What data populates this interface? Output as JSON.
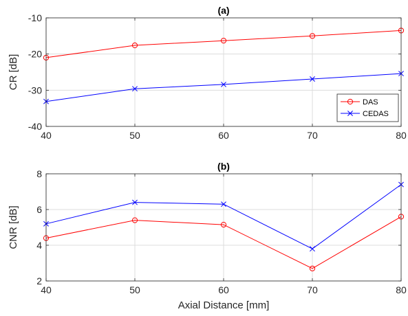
{
  "chart_data": [
    {
      "type": "line",
      "title": "(a)",
      "xlabel": "",
      "ylabel": "CR [dB]",
      "x": [
        40,
        50,
        60,
        70,
        80
      ],
      "xlim": [
        40,
        80
      ],
      "ylim": [
        -40,
        -10
      ],
      "xticks": [
        40,
        50,
        60,
        70,
        80
      ],
      "yticks": [
        -40,
        -30,
        -20,
        -10
      ],
      "xtick_labels": [
        "40",
        "50",
        "60",
        "70",
        "80"
      ],
      "ytick_labels": [
        "-40",
        "-30",
        "-20",
        "-10"
      ],
      "grid": true,
      "legend_position": "right",
      "series": [
        {
          "name": "DAS",
          "color": "#ff0000",
          "marker": "circle",
          "values": [
            -21.0,
            -17.6,
            -16.3,
            -15.0,
            -13.5
          ]
        },
        {
          "name": "CEDAS",
          "color": "#0000ff",
          "marker": "x",
          "values": [
            -33.1,
            -29.6,
            -28.4,
            -26.9,
            -25.4
          ]
        }
      ]
    },
    {
      "type": "line",
      "title": "(b)",
      "xlabel": "Axial Distance [mm]",
      "ylabel": "CNR [dB]",
      "x": [
        40,
        50,
        60,
        70,
        80
      ],
      "xlim": [
        40,
        80
      ],
      "ylim": [
        2,
        8
      ],
      "xticks": [
        40,
        50,
        60,
        70,
        80
      ],
      "yticks": [
        2,
        4,
        6,
        8
      ],
      "xtick_labels": [
        "40",
        "50",
        "60",
        "70",
        "80"
      ],
      "ytick_labels": [
        "2",
        "4",
        "6",
        "8"
      ],
      "grid": true,
      "series": [
        {
          "name": "DAS",
          "color": "#ff0000",
          "marker": "circle",
          "values": [
            4.4,
            5.4,
            5.15,
            2.7,
            5.6
          ]
        },
        {
          "name": "CEDAS",
          "color": "#0000ff",
          "marker": "x",
          "values": [
            5.2,
            6.4,
            6.3,
            3.8,
            7.4
          ]
        }
      ]
    }
  ]
}
